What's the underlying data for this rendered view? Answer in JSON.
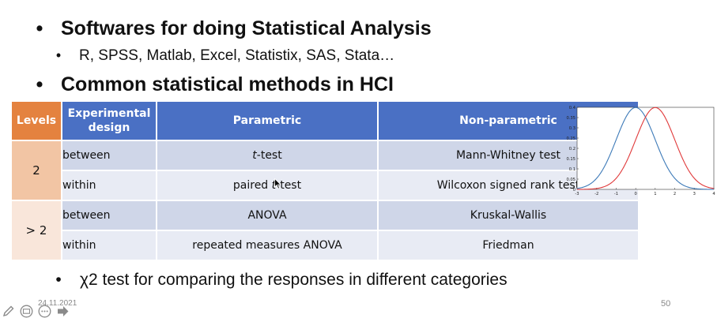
{
  "bullets": {
    "b1": "Softwares for doing Statistical Analysis",
    "b2": "R, SPSS, Matlab, Excel, Statistix, SAS, Stata…",
    "b3": "Common statistical methods in HCI",
    "b4": "χ2 test for comparing the responses in different categories"
  },
  "table": {
    "headers": {
      "levels": "Levels",
      "design": "Experimental design",
      "parametric": "Parametric",
      "nonparametric": "Non-parametric"
    },
    "levels": [
      "2",
      "> 2"
    ],
    "rows": [
      {
        "design": "between",
        "parametric_pre": "",
        "parametric_italic": "t",
        "parametric_post": "-test",
        "nonparametric": "Mann-Whitney test"
      },
      {
        "design": "within",
        "parametric_pre": "paired ",
        "parametric_italic": "t",
        "parametric_post": "-test",
        "nonparametric": "Wilcoxon signed rank test"
      },
      {
        "design": "between",
        "parametric_pre": "ANOVA",
        "parametric_italic": "",
        "parametric_post": "",
        "nonparametric": "Kruskal-Wallis"
      },
      {
        "design": "within",
        "parametric_pre": "repeated measures ANOVA",
        "parametric_italic": "",
        "parametric_post": "",
        "nonparametric": "Friedman"
      }
    ]
  },
  "chart_data": {
    "type": "line",
    "x_ticks": [
      "-3",
      "-2",
      "-1",
      "0",
      "1",
      "2",
      "3",
      "4"
    ],
    "y_ticks": [
      "0",
      "0.05",
      "0.1",
      "0.15",
      "0.2",
      "0.25",
      "0.3",
      "0.35",
      "0.4"
    ],
    "xlim": [
      -3,
      4
    ],
    "ylim": [
      0,
      0.4
    ],
    "series": [
      {
        "mean": 0,
        "sd": 1,
        "color": "#3d7ab8"
      },
      {
        "mean": 1,
        "sd": 1,
        "color": "#e0393a"
      }
    ]
  },
  "footer": {
    "date": "24.11.2021",
    "page": "50"
  },
  "toolbar": {
    "icons": [
      "pen-icon",
      "subtitles-icon",
      "more-icon",
      "next-arrow-icon"
    ]
  }
}
